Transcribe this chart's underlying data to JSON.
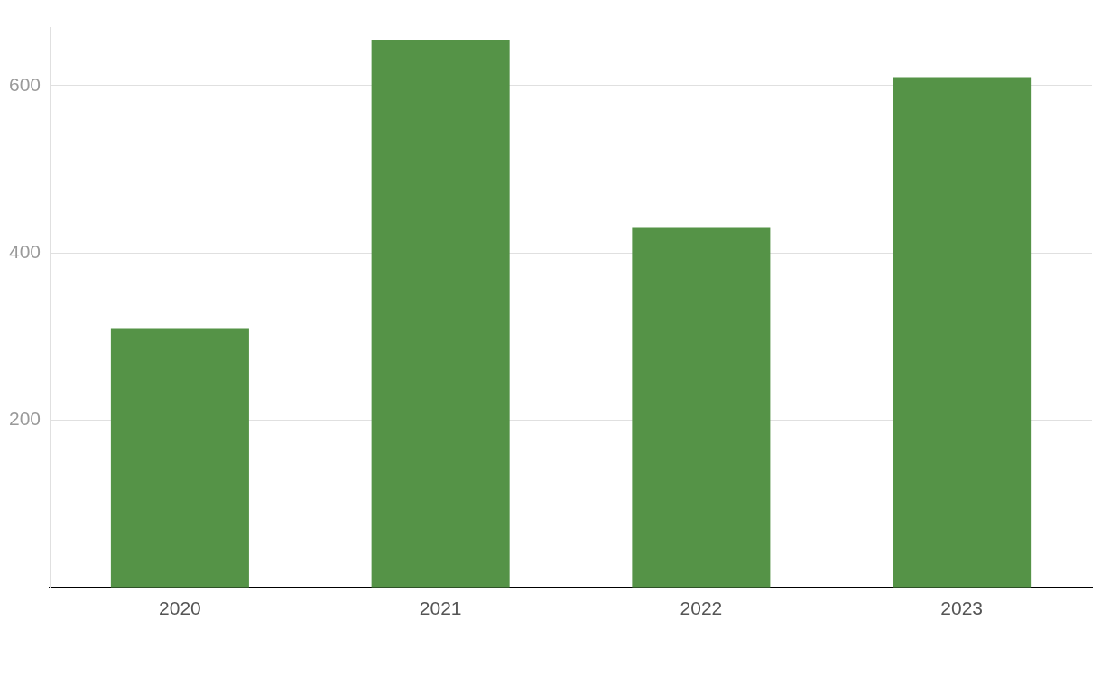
{
  "chart_data": {
    "type": "bar",
    "categories": [
      "2020",
      "2021",
      "2022",
      "2023"
    ],
    "values": [
      310,
      655,
      430,
      610
    ],
    "color": "#559347",
    "ylim": [
      0,
      670
    ],
    "yticks": [
      200,
      400,
      600
    ],
    "grid": "y"
  }
}
